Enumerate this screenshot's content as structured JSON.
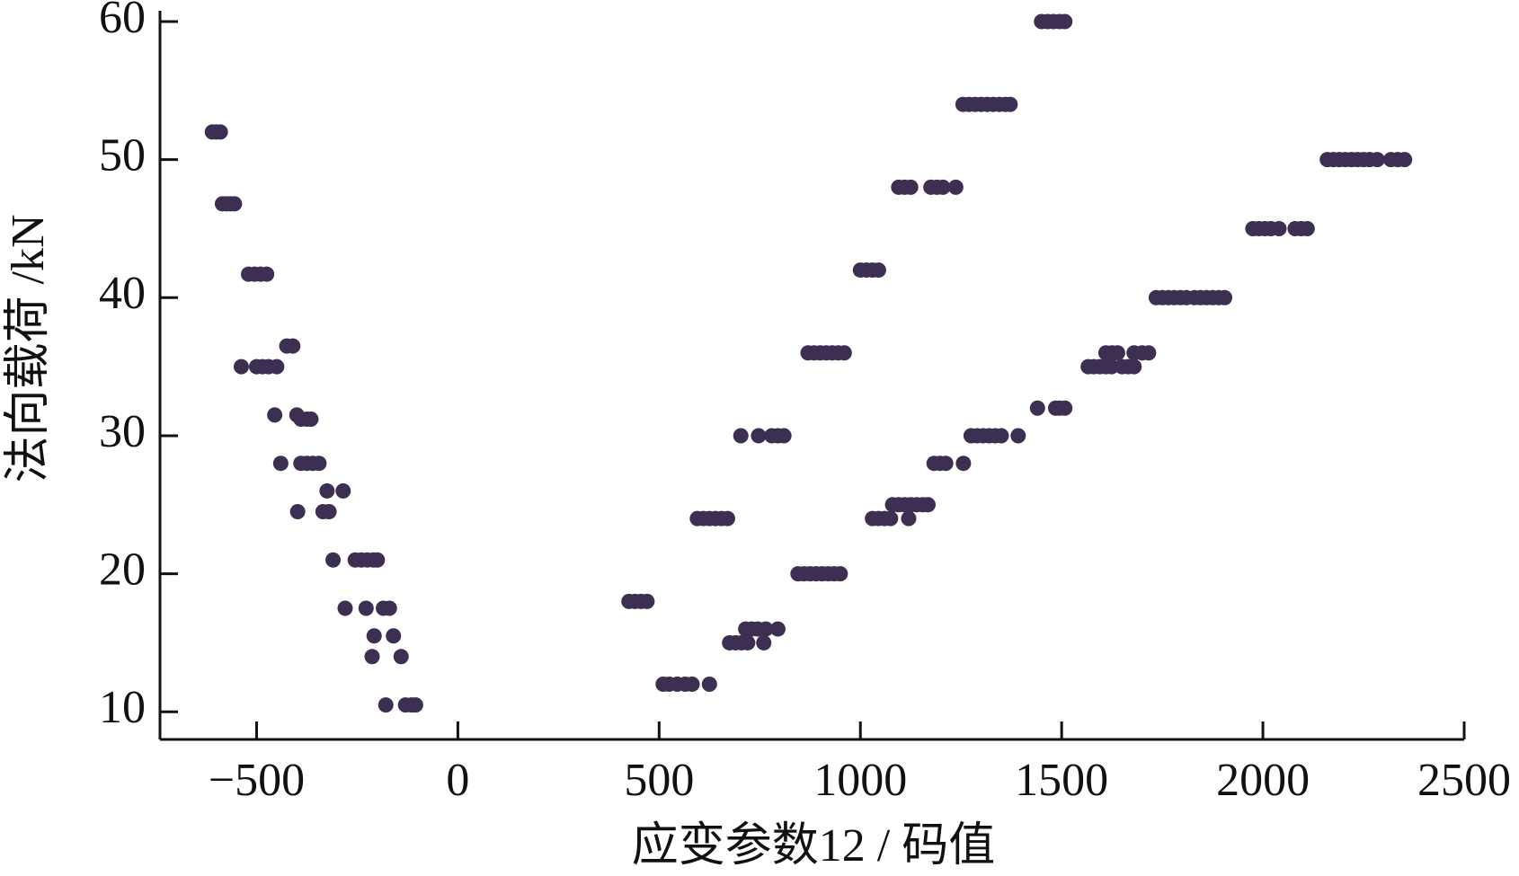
{
  "chart_data": {
    "type": "scatter",
    "x_label": "应变参数12 / 码值",
    "y_label": "法向载荷 /kN",
    "color": "#3d2f52",
    "xlim": [
      -740,
      2500
    ],
    "ylim": [
      8,
      60
    ],
    "xticks": [
      {
        "value": -500,
        "label": "−500"
      },
      0,
      500,
      1000,
      1500,
      2000,
      2500
    ],
    "yticks": [
      10,
      20,
      30,
      40,
      50,
      60
    ],
    "x": [
      -610,
      -600,
      -590,
      -585,
      -575,
      -565,
      -555,
      -520,
      -505,
      -490,
      -475,
      -538,
      -500,
      -485,
      -470,
      -450,
      -425,
      -410,
      -455,
      -400,
      -390,
      -375,
      -365,
      -440,
      -390,
      -375,
      -360,
      -345,
      -398,
      -335,
      -320,
      -325,
      -285,
      -310,
      -255,
      -240,
      -225,
      -210,
      -200,
      -280,
      -228,
      -185,
      -170,
      -208,
      -160,
      -213,
      -141,
      -179,
      -130,
      -115,
      -105,
      425,
      440,
      455,
      470,
      510,
      525,
      545,
      565,
      582,
      625,
      595,
      610,
      625,
      640,
      655,
      670,
      675,
      690,
      705,
      720,
      760,
      715,
      730,
      745,
      765,
      795,
      703,
      747,
      780,
      795,
      810,
      845,
      860,
      875,
      890,
      905,
      920,
      935,
      950,
      870,
      885,
      900,
      915,
      930,
      945,
      960,
      1000,
      1015,
      1030,
      1045,
      1030,
      1045,
      1060,
      1075,
      1120,
      1080,
      1095,
      1110,
      1125,
      1140,
      1155,
      1168,
      1095,
      1110,
      1125,
      1175,
      1190,
      1205,
      1237,
      1183,
      1198,
      1212,
      1256,
      1255,
      1270,
      1285,
      1300,
      1315,
      1330,
      1345,
      1360,
      1372,
      1275,
      1290,
      1305,
      1320,
      1335,
      1350,
      1392,
      1440,
      1485,
      1495,
      1508,
      1450,
      1465,
      1480,
      1495,
      1508,
      1566,
      1580,
      1595,
      1610,
      1624,
      1650,
      1665,
      1680,
      1610,
      1625,
      1639,
      1680,
      1700,
      1716,
      1735,
      1750,
      1765,
      1780,
      1795,
      1810,
      1830,
      1845,
      1860,
      1875,
      1890,
      1905,
      1975,
      1990,
      2005,
      2020,
      2040,
      2080,
      2095,
      2110,
      2160,
      2175,
      2190,
      2205,
      2220,
      2235,
      2250,
      2265,
      2284,
      2318,
      2335,
      2352
    ],
    "values": [
      52,
      52,
      52,
      46.8,
      46.8,
      46.8,
      46.8,
      41.7,
      41.7,
      41.7,
      41.7,
      35,
      35,
      35,
      35,
      35,
      36.5,
      36.5,
      31.5,
      31.5,
      31.2,
      31.2,
      31.2,
      28,
      28,
      28,
      28,
      28,
      24.5,
      24.5,
      24.5,
      26,
      26,
      21,
      21,
      21,
      21,
      21,
      21,
      17.5,
      17.5,
      17.5,
      17.5,
      15.5,
      15.5,
      14,
      14,
      10.5,
      10.5,
      10.5,
      10.5,
      18,
      18,
      18,
      18,
      12,
      12,
      12,
      12,
      12,
      12,
      24,
      24,
      24,
      24,
      24,
      24,
      15,
      15,
      15,
      15,
      15,
      16,
      16,
      16,
      16,
      16,
      30,
      30,
      30,
      30,
      30,
      20,
      20,
      20,
      20,
      20,
      20,
      20,
      20,
      36,
      36,
      36,
      36,
      36,
      36,
      36,
      42,
      42,
      42,
      42,
      24,
      24,
      24,
      24,
      24,
      25,
      25,
      25,
      25,
      25,
      25,
      25,
      48,
      48,
      48,
      48,
      48,
      48,
      48,
      28,
      28,
      28,
      28,
      54,
      54,
      54,
      54,
      54,
      54,
      54,
      54,
      54,
      30,
      30,
      30,
      30,
      30,
      30,
      30,
      32,
      32,
      32,
      32,
      60,
      60,
      60,
      60,
      60,
      35,
      35,
      35,
      35,
      35,
      35,
      35,
      35,
      36,
      36,
      36,
      36,
      36,
      36,
      40,
      40,
      40,
      40,
      40,
      40,
      40,
      40,
      40,
      40,
      40,
      40,
      45,
      45,
      45,
      45,
      45,
      45,
      45,
      45,
      50,
      50,
      50,
      50,
      50,
      50,
      50,
      50,
      50,
      50,
      50,
      50
    ]
  }
}
